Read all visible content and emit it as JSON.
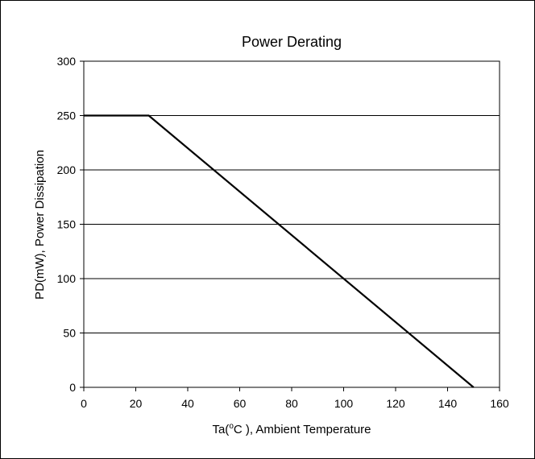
{
  "chart_data": {
    "type": "line",
    "title": "Power Derating",
    "xlabel": {
      "prefix": "Ta(",
      "sup": "o",
      "suffix": "C ), Ambient Temperature"
    },
    "ylabel": "PD(mW), Power Dissipation",
    "xlim": [
      0,
      160
    ],
    "ylim": [
      0,
      300
    ],
    "xticks": [
      0,
      20,
      40,
      60,
      80,
      100,
      120,
      140,
      160
    ],
    "yticks": [
      0,
      50,
      100,
      150,
      200,
      250,
      300
    ],
    "grid": {
      "horizontal": true,
      "vertical": false
    },
    "series": [
      {
        "x": [
          0,
          25,
          150
        ],
        "y": [
          250,
          250,
          0
        ],
        "color": "#000000"
      }
    ]
  }
}
